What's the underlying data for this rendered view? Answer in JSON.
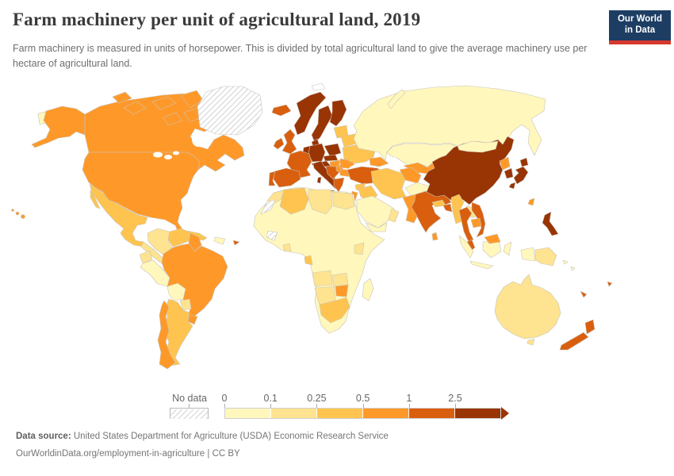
{
  "header": {
    "title": "Farm machinery per unit of agricultural land, 2019",
    "subtitle": "Farm machinery is measured in units of horsepower. This is divided by total agricultural land to give the average machinery use per hectare of agricultural land."
  },
  "logo": {
    "line1": "Our World",
    "line2": "in Data",
    "bg_color": "#1d3d63",
    "stripe_color": "#d7382d"
  },
  "legend": {
    "no_data_label": "No data",
    "ticks": [
      "0",
      "0.1",
      "0.25",
      "0.5",
      "1",
      "2.5"
    ]
  },
  "footer": {
    "source_label": "Data source:",
    "source_text": " United States Department for Agriculture (USDA) Economic Research Service",
    "citation": "OurWorldinData.org/employment-in-agriculture | CC BY"
  },
  "chart_data": {
    "type": "choropleth",
    "title": "Farm machinery per unit of agricultural land, 2019",
    "unit": "horsepower per hectare of agricultural land",
    "year": "2019",
    "bins": [
      "0–0.1",
      "0.1–0.25",
      "0.25–0.5",
      "0.5–1",
      "1–2.5",
      "2.5+"
    ],
    "palette": [
      "#fff7bc",
      "#fee391",
      "#fec44f",
      "#fe9929",
      "#d95f0e",
      "#993404"
    ],
    "no_data_style": "gray diagonal hatch",
    "legend_position": "bottom",
    "countries": {
      "united-states": 3,
      "canada": 3,
      "greenland": "no-data",
      "mexico": 2,
      "central-america": 1,
      "costa-rica-panama": 3,
      "cuba": 2,
      "hispaniola": 0,
      "jamaica": 1,
      "puerto-rico": 4,
      "trinidad-tobago": 4,
      "colombia": 1,
      "venezuela": 2,
      "guyanas": 3,
      "ecuador": 1,
      "peru": 0,
      "brazil": 3,
      "bolivia": 0,
      "paraguay": 1,
      "uruguay": 3,
      "argentina": 2,
      "chile": 3,
      "iceland": 4,
      "norway": 5,
      "sweden": 5,
      "finland": 5,
      "denmark": 5,
      "united-kingdom": 4,
      "ireland": 4,
      "france": 4,
      "spain": 4,
      "portugal": 4,
      "benelux": 5,
      "germany": 5,
      "poland": 5,
      "czechia-slovakia": 5,
      "austria-switzerland": 5,
      "italy": 5,
      "balkans-west": 4,
      "serbia": 3,
      "hungary": 3,
      "romania": 3,
      "bulgaria": 3,
      "greece": 4,
      "ukraine": 2,
      "belarus": 2,
      "baltics": 2,
      "russia": 0,
      "svalbard": "blank",
      "turkey": 4,
      "caucasus": 3,
      "kazakhstan": 0,
      "uzbekistan": 3,
      "turkmenistan": 3,
      "kyrgyzstan-tajikistan": 2,
      "iran": 2,
      "iraq": 2,
      "syria": 2,
      "israel-jordan": 3,
      "saudi-arabia": 0,
      "yemen": 0,
      "oman": 1,
      "afghanistan": 0,
      "pakistan": 3,
      "india": 4,
      "nepal": 2,
      "bangladesh": 4,
      "sri-lanka": 3,
      "myanmar": 2,
      "thailand": 4,
      "laos": 1,
      "cambodia": 3,
      "vietnam": 4,
      "malaysia-peninsula": 4,
      "malaysia-borneo": 3,
      "indonesia": 0,
      "papua-new-guinea": 1,
      "solomon-islands": 0,
      "philippines": 5,
      "taiwan": 3,
      "china": 5,
      "mongolia": 0,
      "north-korea": 3,
      "south-korea": 5,
      "japan": 5,
      "africa-other": 0,
      "morocco": 1,
      "western-sahara": "no-data",
      "algeria": 2,
      "libya": 1,
      "egypt": 1,
      "guinea": "no-data",
      "ghana": 1,
      "gabon": 2,
      "kenya": 1,
      "angola": 1,
      "zambia": 1,
      "zimbabwe": 3,
      "namibia-botswana": 1,
      "south-africa": 2,
      "madagascar": 0,
      "australia": 1,
      "new-zealand": 4,
      "fiji": 4,
      "new-caledonia": 4
    }
  }
}
